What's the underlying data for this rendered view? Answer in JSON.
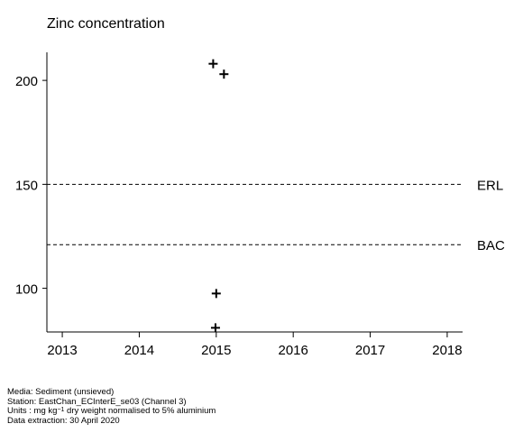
{
  "chart_data": {
    "type": "scatter",
    "title": "Zinc concentration",
    "xlim": [
      2012.8,
      2018.2
    ],
    "ylim": [
      79,
      213.5
    ],
    "x_ticks": [
      2013,
      2014,
      2015,
      2016,
      2017,
      2018
    ],
    "x_tick_labels": [
      "2013",
      "2014",
      "2015",
      "2016",
      "2017",
      "2018"
    ],
    "y_ticks": [
      100,
      150,
      200
    ],
    "y_tick_labels": [
      "100",
      "150",
      "200"
    ],
    "points": [
      {
        "x": 2014.96,
        "y": 208
      },
      {
        "x": 2015.1,
        "y": 203
      },
      {
        "x": 2015.0,
        "y": 97.5
      },
      {
        "x": 2014.99,
        "y": 81
      }
    ],
    "reference_lines": [
      {
        "label": "ERL",
        "value": 150
      },
      {
        "label": "BAC",
        "value": 121
      }
    ],
    "marker": "plus",
    "grid": false
  },
  "footer": {
    "media": "Media: Sediment (unsieved)",
    "station": "Station: EastChan_ECInterE_se03 (Channel 3)",
    "units_prefix": "Units : mg kg",
    "units_sup": "−1",
    "units_suffix": " dry weight normalised to 5% aluminium",
    "extraction": "Data extraction: 30 April 2020"
  }
}
